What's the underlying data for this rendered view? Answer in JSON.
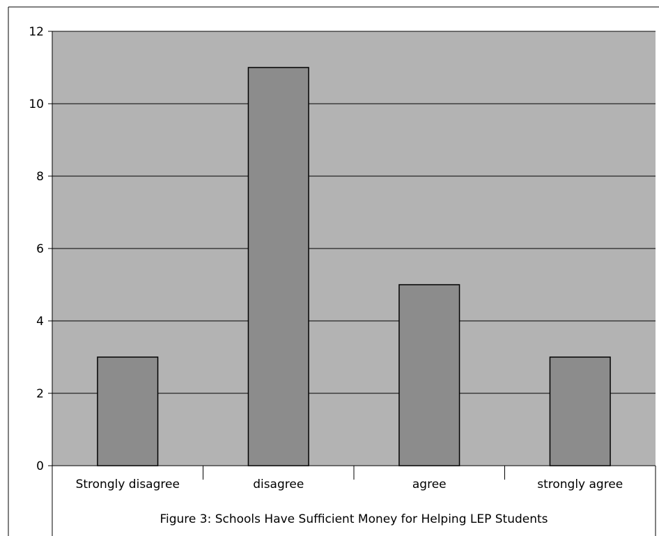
{
  "chart_data": {
    "type": "bar",
    "categories": [
      "Strongly disagree",
      "disagree",
      "agree",
      "strongly agree"
    ],
    "values": [
      3,
      11,
      5,
      3
    ],
    "title": "",
    "caption": "Figure 3: Schools Have Sufficient Money for Helping LEP Students",
    "xlabel": "",
    "ylabel": "",
    "ylim": [
      0,
      12
    ],
    "yticks": [
      0,
      2,
      4,
      6,
      8,
      10,
      12
    ],
    "grid": true,
    "legend": "none",
    "colors": {
      "plot_background": "#b3b3b3",
      "bar_fill": "#8c8c8c",
      "bar_stroke": "#000000",
      "gridline": "#000000"
    }
  }
}
